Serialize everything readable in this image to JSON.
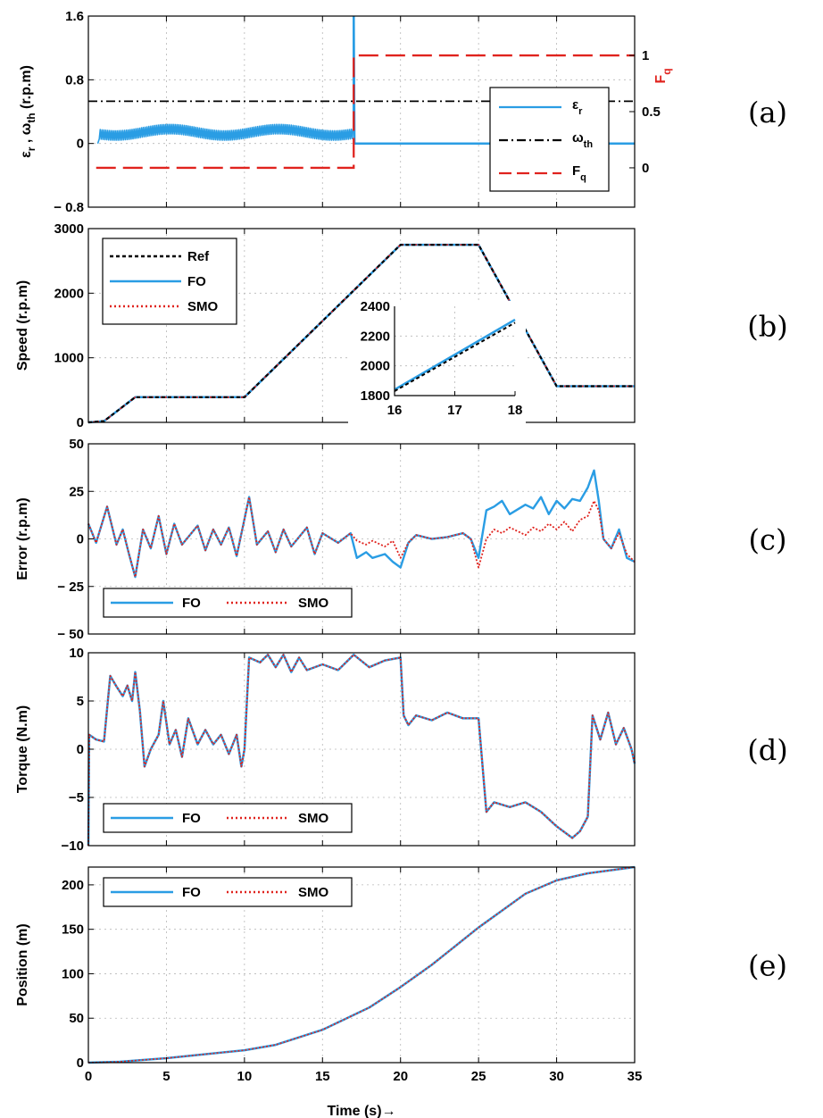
{
  "colors": {
    "fo": "#2a9de4",
    "smo": "#e0231e",
    "ref": "#000000",
    "grid": "#b7b7b7",
    "fq_axis": "#e0231e"
  },
  "figure": {
    "xlabel": "Time (s)→",
    "x_ticks": [
      "0",
      "5",
      "10",
      "15",
      "20",
      "25",
      "30",
      "35"
    ]
  },
  "chart_data": [
    {
      "id": "a",
      "tag": "(a)",
      "type": "line",
      "ylabel_parts": [
        "ε",
        "r",
        " , ω",
        "th",
        " (r.p.m)"
      ],
      "y_ticks": [
        "1.6",
        "0.8",
        "0",
        "− 0.8"
      ],
      "right_label": "F",
      "right_label_sub": "q",
      "right_ticks": [
        "1",
        "0.5",
        "0"
      ],
      "xlim": [
        0,
        35
      ],
      "ylim": [
        -0.8,
        1.6
      ],
      "right_ylim": [
        -0.35,
        1.35
      ],
      "legend": [
        "εr",
        "ωth",
        "Fq"
      ],
      "series": [
        {
          "name": "εr",
          "points": [
            [
              0,
              0
            ],
            [
              0.6,
              0
            ],
            [
              0.6,
              0.18
            ],
            [
              17,
              0.18
            ],
            [
              17,
              1.6
            ],
            [
              17.05,
              0
            ],
            [
              35,
              0
            ]
          ],
          "note_band": [
            0.7,
            17,
            0.08,
            0.2
          ]
        },
        {
          "name": "ωth",
          "points": [
            [
              0,
              0.53
            ],
            [
              35,
              0.53
            ]
          ]
        },
        {
          "name": "Fq",
          "points": [
            [
              0.5,
              0
            ],
            [
              17,
              0
            ],
            [
              17,
              1
            ],
            [
              35,
              1
            ]
          ]
        }
      ]
    },
    {
      "id": "b",
      "tag": "(b)",
      "type": "line",
      "ylabel": "Speed (r.p.m)",
      "y_ticks": [
        "3000",
        "2000",
        "1000",
        "0"
      ],
      "xlim": [
        0,
        35
      ],
      "ylim": [
        0,
        3000
      ],
      "legend": [
        "Ref",
        "FO",
        "SMO"
      ],
      "series_points": [
        [
          0,
          0
        ],
        [
          1,
          20
        ],
        [
          3,
          390
        ],
        [
          10,
          390
        ],
        [
          20,
          2750
        ],
        [
          25,
          2750
        ],
        [
          30,
          560
        ],
        [
          35,
          560
        ]
      ],
      "inset": {
        "x_ticks": [
          "16",
          "17",
          "18"
        ],
        "y_ticks": [
          "2400",
          "2200",
          "2000",
          "1800"
        ],
        "xlim": [
          16,
          18
        ],
        "ylim": [
          1800,
          2400
        ],
        "ref": [
          [
            16,
            1830
          ],
          [
            18,
            2290
          ]
        ],
        "fo": [
          [
            16,
            1840
          ],
          [
            18,
            2310
          ]
        ]
      }
    },
    {
      "id": "c",
      "tag": "(c)",
      "type": "line",
      "ylabel": "Error (r.p.m)",
      "y_ticks": [
        "50",
        "25",
        "0",
        "− 25",
        "− 50"
      ],
      "xlim": [
        0,
        35
      ],
      "ylim": [
        -50,
        50
      ],
      "legend": [
        "FO",
        "SMO"
      ],
      "fo_points": [
        [
          0,
          8
        ],
        [
          0.5,
          -2
        ],
        [
          1.2,
          17
        ],
        [
          1.8,
          -3
        ],
        [
          2.2,
          5
        ],
        [
          2.6,
          -8
        ],
        [
          3,
          -20
        ],
        [
          3.5,
          5
        ],
        [
          4,
          -5
        ],
        [
          4.5,
          12
        ],
        [
          5,
          -8
        ],
        [
          5.5,
          8
        ],
        [
          6,
          -3
        ],
        [
          7,
          7
        ],
        [
          7.5,
          -6
        ],
        [
          8,
          5
        ],
        [
          8.5,
          -3
        ],
        [
          9,
          6
        ],
        [
          9.5,
          -9
        ],
        [
          10.3,
          22
        ],
        [
          10.8,
          -3
        ],
        [
          11.5,
          4
        ],
        [
          12,
          -7
        ],
        [
          12.5,
          5
        ],
        [
          13,
          -4
        ],
        [
          14,
          6
        ],
        [
          14.5,
          -8
        ],
        [
          15,
          3
        ],
        [
          16,
          -2
        ],
        [
          16.8,
          3
        ],
        [
          17.2,
          -10
        ],
        [
          17.8,
          -7
        ],
        [
          18.2,
          -10
        ],
        [
          19,
          -8
        ],
        [
          19.5,
          -12
        ],
        [
          20,
          -15
        ],
        [
          20.5,
          -2
        ],
        [
          21,
          2
        ],
        [
          22,
          0
        ],
        [
          23,
          1
        ],
        [
          24,
          3
        ],
        [
          24.5,
          0
        ],
        [
          25,
          -10
        ],
        [
          25.5,
          15
        ],
        [
          26,
          17
        ],
        [
          26.5,
          20
        ],
        [
          27,
          13
        ],
        [
          28,
          18
        ],
        [
          28.5,
          16
        ],
        [
          29,
          22
        ],
        [
          29.5,
          13
        ],
        [
          30,
          20
        ],
        [
          30.5,
          16
        ],
        [
          31,
          21
        ],
        [
          31.5,
          20
        ],
        [
          32,
          27
        ],
        [
          32.4,
          36
        ],
        [
          32.7,
          20
        ],
        [
          33,
          0
        ],
        [
          33.5,
          -5
        ],
        [
          34,
          5
        ],
        [
          34.5,
          -10
        ],
        [
          35,
          -12
        ]
      ],
      "smo_points": [
        [
          0,
          8
        ],
        [
          0.5,
          -2
        ],
        [
          1.2,
          17
        ],
        [
          1.8,
          -3
        ],
        [
          2.2,
          5
        ],
        [
          2.6,
          -8
        ],
        [
          3,
          -20
        ],
        [
          3.5,
          5
        ],
        [
          4,
          -5
        ],
        [
          4.5,
          12
        ],
        [
          5,
          -8
        ],
        [
          5.5,
          8
        ],
        [
          6,
          -3
        ],
        [
          7,
          7
        ],
        [
          7.5,
          -6
        ],
        [
          8,
          5
        ],
        [
          8.5,
          -3
        ],
        [
          9,
          6
        ],
        [
          9.5,
          -9
        ],
        [
          10.3,
          22
        ],
        [
          10.8,
          -3
        ],
        [
          11.5,
          4
        ],
        [
          12,
          -7
        ],
        [
          12.5,
          5
        ],
        [
          13,
          -4
        ],
        [
          14,
          6
        ],
        [
          14.5,
          -8
        ],
        [
          15,
          3
        ],
        [
          16,
          -2
        ],
        [
          16.8,
          3
        ],
        [
          17.2,
          -1
        ],
        [
          17.8,
          -3
        ],
        [
          18.2,
          -1
        ],
        [
          19,
          -4
        ],
        [
          19.5,
          -1
        ],
        [
          20,
          -10
        ],
        [
          20.5,
          -2
        ],
        [
          21,
          2
        ],
        [
          22,
          0
        ],
        [
          23,
          1
        ],
        [
          24,
          3
        ],
        [
          24.5,
          0
        ],
        [
          25,
          -15
        ],
        [
          25.5,
          0
        ],
        [
          26,
          5
        ],
        [
          26.5,
          3
        ],
        [
          27,
          6
        ],
        [
          28,
          2
        ],
        [
          28.5,
          6
        ],
        [
          29,
          4
        ],
        [
          29.5,
          8
        ],
        [
          30,
          5
        ],
        [
          30.5,
          9
        ],
        [
          31,
          4
        ],
        [
          31.5,
          10
        ],
        [
          32,
          12
        ],
        [
          32.4,
          20
        ],
        [
          32.7,
          15
        ],
        [
          33,
          0
        ],
        [
          33.5,
          -5
        ],
        [
          34,
          3
        ],
        [
          34.5,
          -8
        ],
        [
          35,
          -12
        ]
      ]
    },
    {
      "id": "d",
      "tag": "(d)",
      "type": "line",
      "ylabel": "Torque (N.m)",
      "y_ticks": [
        "10",
        "5",
        "0",
        "−5",
        "−10"
      ],
      "xlim": [
        0,
        35
      ],
      "ylim": [
        -10,
        10
      ],
      "legend": [
        "FO",
        "SMO"
      ],
      "points": [
        [
          0,
          -10
        ],
        [
          0.05,
          1.5
        ],
        [
          0.5,
          1
        ],
        [
          1,
          0.8
        ],
        [
          1.4,
          7.6
        ],
        [
          1.8,
          6.5
        ],
        [
          2.2,
          5.5
        ],
        [
          2.5,
          6.6
        ],
        [
          2.8,
          5
        ],
        [
          3,
          8
        ],
        [
          3.3,
          4
        ],
        [
          3.6,
          -1.8
        ],
        [
          4,
          0
        ],
        [
          4.5,
          1.5
        ],
        [
          4.8,
          5
        ],
        [
          5.2,
          0.5
        ],
        [
          5.6,
          2
        ],
        [
          6,
          -0.8
        ],
        [
          6.4,
          3.2
        ],
        [
          7,
          0.5
        ],
        [
          7.5,
          2
        ],
        [
          8,
          0.5
        ],
        [
          8.5,
          1.5
        ],
        [
          9,
          -0.5
        ],
        [
          9.5,
          1.5
        ],
        [
          9.8,
          -1.8
        ],
        [
          10,
          0
        ],
        [
          10.3,
          9.5
        ],
        [
          11,
          9
        ],
        [
          11.5,
          9.8
        ],
        [
          12,
          8.5
        ],
        [
          12.5,
          9.8
        ],
        [
          13,
          8
        ],
        [
          13.5,
          9.5
        ],
        [
          14,
          8.2
        ],
        [
          15,
          8.8
        ],
        [
          16,
          8.2
        ],
        [
          17,
          9.8
        ],
        [
          18,
          8.5
        ],
        [
          19,
          9.2
        ],
        [
          20,
          9.5
        ],
        [
          20.2,
          3.5
        ],
        [
          20.5,
          2.5
        ],
        [
          21,
          3.5
        ],
        [
          22,
          3
        ],
        [
          23,
          3.8
        ],
        [
          24,
          3.2
        ],
        [
          25,
          3.2
        ],
        [
          25.5,
          -6.5
        ],
        [
          26,
          -5.5
        ],
        [
          27,
          -6
        ],
        [
          28,
          -5.5
        ],
        [
          29,
          -6.5
        ],
        [
          30,
          -8
        ],
        [
          31,
          -9.2
        ],
        [
          31.5,
          -8.5
        ],
        [
          32,
          -7
        ],
        [
          32.3,
          3.5
        ],
        [
          32.8,
          1
        ],
        [
          33.3,
          3.8
        ],
        [
          33.8,
          0.5
        ],
        [
          34.3,
          2.2
        ],
        [
          34.8,
          0
        ],
        [
          35,
          -1.5
        ]
      ]
    },
    {
      "id": "e",
      "tag": "(e)",
      "type": "line",
      "ylabel": "Position (m)",
      "y_ticks": [
        "200",
        "150",
        "100",
        "50",
        "0"
      ],
      "xlim": [
        0,
        35
      ],
      "ylim": [
        0,
        220
      ],
      "legend": [
        "FO",
        "SMO"
      ],
      "points": [
        [
          0,
          0
        ],
        [
          2,
          1
        ],
        [
          5,
          5
        ],
        [
          10,
          14
        ],
        [
          12,
          20
        ],
        [
          15,
          37
        ],
        [
          18,
          62
        ],
        [
          20,
          85
        ],
        [
          22,
          110
        ],
        [
          25,
          152
        ],
        [
          28,
          190
        ],
        [
          30,
          205
        ],
        [
          32,
          213
        ],
        [
          35,
          220
        ]
      ]
    }
  ]
}
